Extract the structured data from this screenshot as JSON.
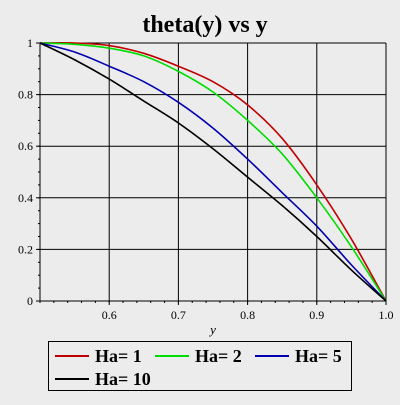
{
  "chart_data": {
    "type": "line",
    "title": "theta(y) vs y",
    "xlabel": "y",
    "ylabel": "",
    "xlim": [
      0.5,
      1.0
    ],
    "ylim": [
      0,
      1
    ],
    "x_ticks": [
      "0.6",
      "0.7",
      "0.8",
      "0.9",
      "1.0"
    ],
    "y_ticks": [
      "0",
      "0.2",
      "0.4",
      "0.6",
      "0.8",
      "1"
    ],
    "grid": true,
    "legend_position": "bottom",
    "x": [
      0.5,
      0.55,
      0.6,
      0.65,
      0.7,
      0.75,
      0.8,
      0.85,
      0.9,
      0.95,
      1.0
    ],
    "series": [
      {
        "name": "Ha= 1",
        "color": "#c00000",
        "values": [
          1.0,
          1.0,
          0.99,
          0.96,
          0.91,
          0.85,
          0.76,
          0.63,
          0.45,
          0.24,
          0.0
        ]
      },
      {
        "name": "Ha= 2",
        "color": "#00dd00",
        "values": [
          1.0,
          0.995,
          0.98,
          0.95,
          0.89,
          0.81,
          0.7,
          0.57,
          0.4,
          0.21,
          0.0
        ]
      },
      {
        "name": "Ha= 5",
        "color": "#0000b0",
        "values": [
          1.0,
          0.965,
          0.91,
          0.85,
          0.77,
          0.67,
          0.55,
          0.42,
          0.29,
          0.14,
          0.0
        ]
      },
      {
        "name": "Ha= 10",
        "color": "#000000",
        "values": [
          1.0,
          0.935,
          0.86,
          0.775,
          0.69,
          0.59,
          0.48,
          0.37,
          0.25,
          0.12,
          0.0
        ]
      }
    ]
  }
}
